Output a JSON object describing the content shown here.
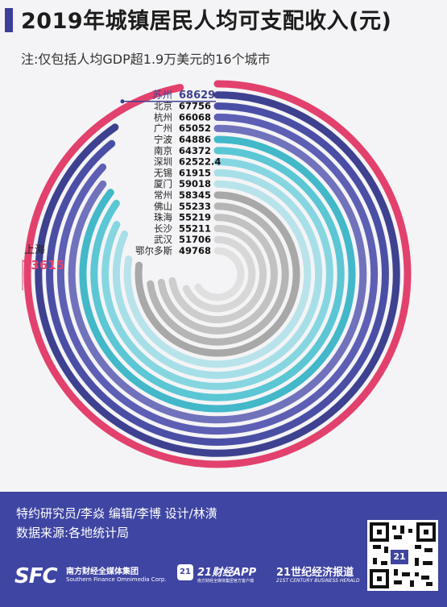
{
  "title": "2019年城镇居民人均可支配收入(元)",
  "subtitle": "注:仅包括人均GDP超1.9万美元的16个城市",
  "chart_data": {
    "type": "radial-bar",
    "title": "2019年城镇居民人均可支配收入(元)",
    "unit": "元",
    "categories": [
      "上海",
      "苏州",
      "北京",
      "杭州",
      "广州",
      "宁波",
      "南京",
      "深圳",
      "无锡",
      "厦门",
      "常州",
      "佛山",
      "珠海",
      "长沙",
      "武汉",
      "鄂尔多斯"
    ],
    "values": [
      73615,
      68629,
      67756,
      66068,
      65052,
      64886,
      64372,
      62522.4,
      61915,
      59018,
      58345,
      55233,
      55219,
      55211,
      51706,
      49768
    ],
    "value_labels": [
      "73615",
      "68629",
      "67756",
      "66068",
      "65052",
      "64886",
      "64372",
      "62522.4",
      "61915",
      "59018",
      "58345",
      "55233",
      "55219",
      "55211",
      "51706",
      "49768"
    ],
    "colors": [
      "#e2416d",
      "#3d4190",
      "#4a4fa5",
      "#5c5fb4",
      "#7072bc",
      "#42b8c9",
      "#5bc6d4",
      "#86d6e1",
      "#a7dfe8",
      "#b9e3ea",
      "#a8a8a8",
      "#b5b5b5",
      "#c2c2c2",
      "#cdcdcd",
      "#d7d7d7",
      "#e0e0e0"
    ],
    "value_colors": [
      "#e2416d",
      "#3d4190",
      "#111111",
      "#111111",
      "#111111",
      "#111111",
      "#111111",
      "#111111",
      "#111111",
      "#111111",
      "#111111",
      "#111111",
      "#111111",
      "#111111",
      "#111111",
      "#111111"
    ]
  },
  "footer": {
    "credits": "特约研究员/李焱  编辑/李博  设计/林潢",
    "source": "数据来源:各地统计局",
    "logo_sfc": "SFC",
    "logo_sfc_cn": "南方财经全媒体集团",
    "logo_sfc_en": "Southern Finance Omnimedia Corp.",
    "app_badge": "21",
    "app_name": "21财经APP",
    "app_sub": "南方财经全媒体集团官方客户端",
    "herald_cn": "21世纪经济报道",
    "herald_en": "21ST CENTURY BUSINESS HERALD",
    "qr_badge": "21"
  }
}
